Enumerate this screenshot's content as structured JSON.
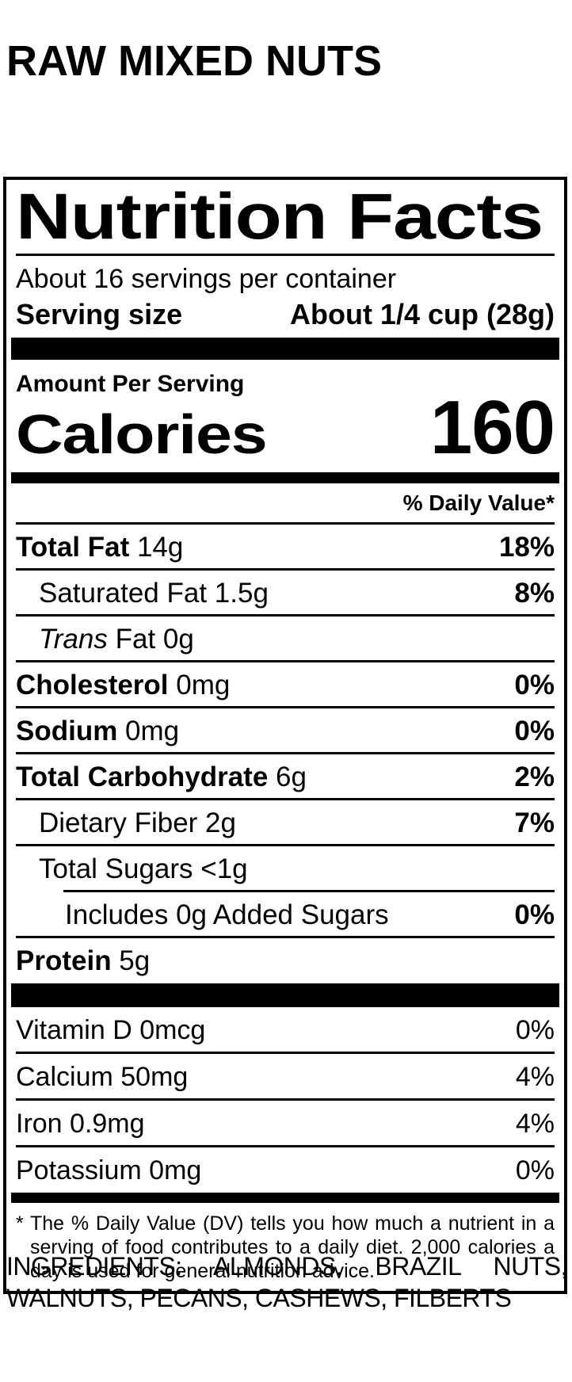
{
  "header": {
    "title": "RAW MIXED NUTS"
  },
  "label": {
    "title": "Nutrition Facts",
    "servings_per_container": "About 16 servings per container",
    "serving_size_label": "Serving size",
    "serving_size_value": "About 1/4 cup (28g)",
    "amount_per_serving": "Amount Per Serving",
    "calories_label": "Calories",
    "calories_value": "160",
    "daily_value_header": "% Daily Value*",
    "nutrient_rows": [
      {
        "indent": 0,
        "segments": [
          {
            "text": "Total Fat",
            "bold": true
          },
          {
            "text": " 14g"
          }
        ],
        "pct": "18%",
        "pct_bold": true,
        "rule_after": "full"
      },
      {
        "indent": 1,
        "segments": [
          {
            "text": "Saturated Fat 1.5g"
          }
        ],
        "pct": "8%",
        "pct_bold": true,
        "rule_after": "full"
      },
      {
        "indent": 1,
        "segments": [
          {
            "text": "Trans",
            "italic": true
          },
          {
            "text": " Fat 0g"
          }
        ],
        "pct": "",
        "rule_after": "full"
      },
      {
        "indent": 0,
        "segments": [
          {
            "text": "Cholesterol",
            "bold": true
          },
          {
            "text": " 0mg"
          }
        ],
        "pct": "0%",
        "pct_bold": true,
        "rule_after": "full"
      },
      {
        "indent": 0,
        "segments": [
          {
            "text": "Sodium",
            "bold": true
          },
          {
            "text": " 0mg"
          }
        ],
        "pct": "0%",
        "pct_bold": true,
        "rule_after": "full"
      },
      {
        "indent": 0,
        "segments": [
          {
            "text": "Total Carbohydrate",
            "bold": true
          },
          {
            "text": " 6g"
          }
        ],
        "pct": "2%",
        "pct_bold": true,
        "rule_after": "full"
      },
      {
        "indent": 1,
        "segments": [
          {
            "text": "Dietary Fiber 2g"
          }
        ],
        "pct": "7%",
        "pct_bold": true,
        "rule_after": "full"
      },
      {
        "indent": 1,
        "segments": [
          {
            "text": "Total Sugars <1g"
          }
        ],
        "pct": "",
        "rule_after": "indented"
      },
      {
        "indent": 2,
        "segments": [
          {
            "text": "Includes 0g Added Sugars"
          }
        ],
        "pct": "0%",
        "pct_bold": true,
        "rule_after": "full"
      },
      {
        "indent": 0,
        "segments": [
          {
            "text": "Protein",
            "bold": true
          },
          {
            "text": " 5g"
          }
        ],
        "pct": "",
        "rule_after": "none"
      }
    ],
    "vitamin_rows": [
      {
        "label": "Vitamin D 0mcg",
        "pct": "0%"
      },
      {
        "label": "Calcium 50mg",
        "pct": "4%"
      },
      {
        "label": "Iron 0.9mg",
        "pct": "4%"
      },
      {
        "label": "Potassium 0mg",
        "pct": "0%"
      }
    ],
    "footnote": {
      "marker": "*",
      "text": "The % Daily Value (DV) tells you how much a nutrient in a serving of food contributes to a daily diet. 2,000 calories a day is used for general nutrition advice."
    }
  },
  "ingredients": {
    "line1": "INGREDIENTS: ALMONDS, BRAZIL NUTS,",
    "line2": "WALNUTS, PECANS, CASHEWS, FILBERTS"
  }
}
